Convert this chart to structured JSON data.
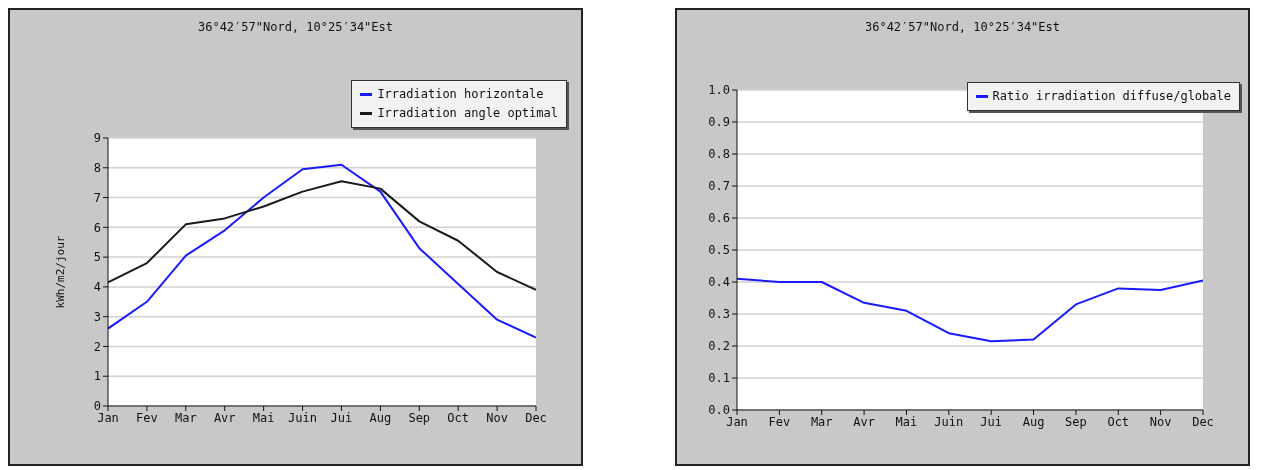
{
  "chart_data": [
    {
      "type": "line",
      "title": "36°42′57\"Nord, 10°25′34\"Est",
      "ylabel": "kWh/m2/jour",
      "categories": [
        "Jan",
        "Fev",
        "Mar",
        "Avr",
        "Mai",
        "Juin",
        "Jui",
        "Aug",
        "Sep",
        "Oct",
        "Nov",
        "Dec"
      ],
      "series": [
        {
          "name": "Irradiation horizontale",
          "color": "#1a1aff",
          "values": [
            2.6,
            3.5,
            5.05,
            5.9,
            7.0,
            7.95,
            8.1,
            7.2,
            5.3,
            4.1,
            2.9,
            2.3
          ]
        },
        {
          "name": "Irradiation angle optimal",
          "color": "#1a1a1a",
          "values": [
            4.15,
            4.8,
            6.1,
            6.3,
            6.7,
            7.2,
            7.55,
            7.3,
            6.2,
            5.55,
            4.5,
            3.9
          ]
        }
      ],
      "ylim": [
        0,
        9
      ],
      "yticks": [
        0,
        1,
        2,
        3,
        4,
        5,
        6,
        7,
        8,
        9
      ],
      "grid": "y",
      "legend": "top right",
      "marker": "none",
      "line_style": "solid"
    },
    {
      "type": "line",
      "title": "36°42′57\"Nord, 10°25′34\"Est",
      "categories": [
        "Jan",
        "Fev",
        "Mar",
        "Avr",
        "Mai",
        "Juin",
        "Jui",
        "Aug",
        "Sep",
        "Oct",
        "Nov",
        "Dec"
      ],
      "series": [
        {
          "name": "Ratio irradiation diffuse/globale",
          "color": "#1a1aff",
          "values": [
            0.41,
            0.4,
            0.4,
            0.335,
            0.31,
            0.24,
            0.215,
            0.22,
            0.33,
            0.38,
            0.375,
            0.405
          ]
        }
      ],
      "ylim": [
        0,
        1
      ],
      "yticks": [
        {
          "value": 0,
          "label": "0.0"
        },
        0.1,
        0.2,
        0.3,
        0.4,
        0.5,
        0.6,
        0.7,
        0.8,
        0.9,
        {
          "value": 1,
          "label": "1.0"
        }
      ],
      "grid": "y",
      "legend": "top right",
      "marker": "none",
      "line_style": "solid"
    }
  ]
}
